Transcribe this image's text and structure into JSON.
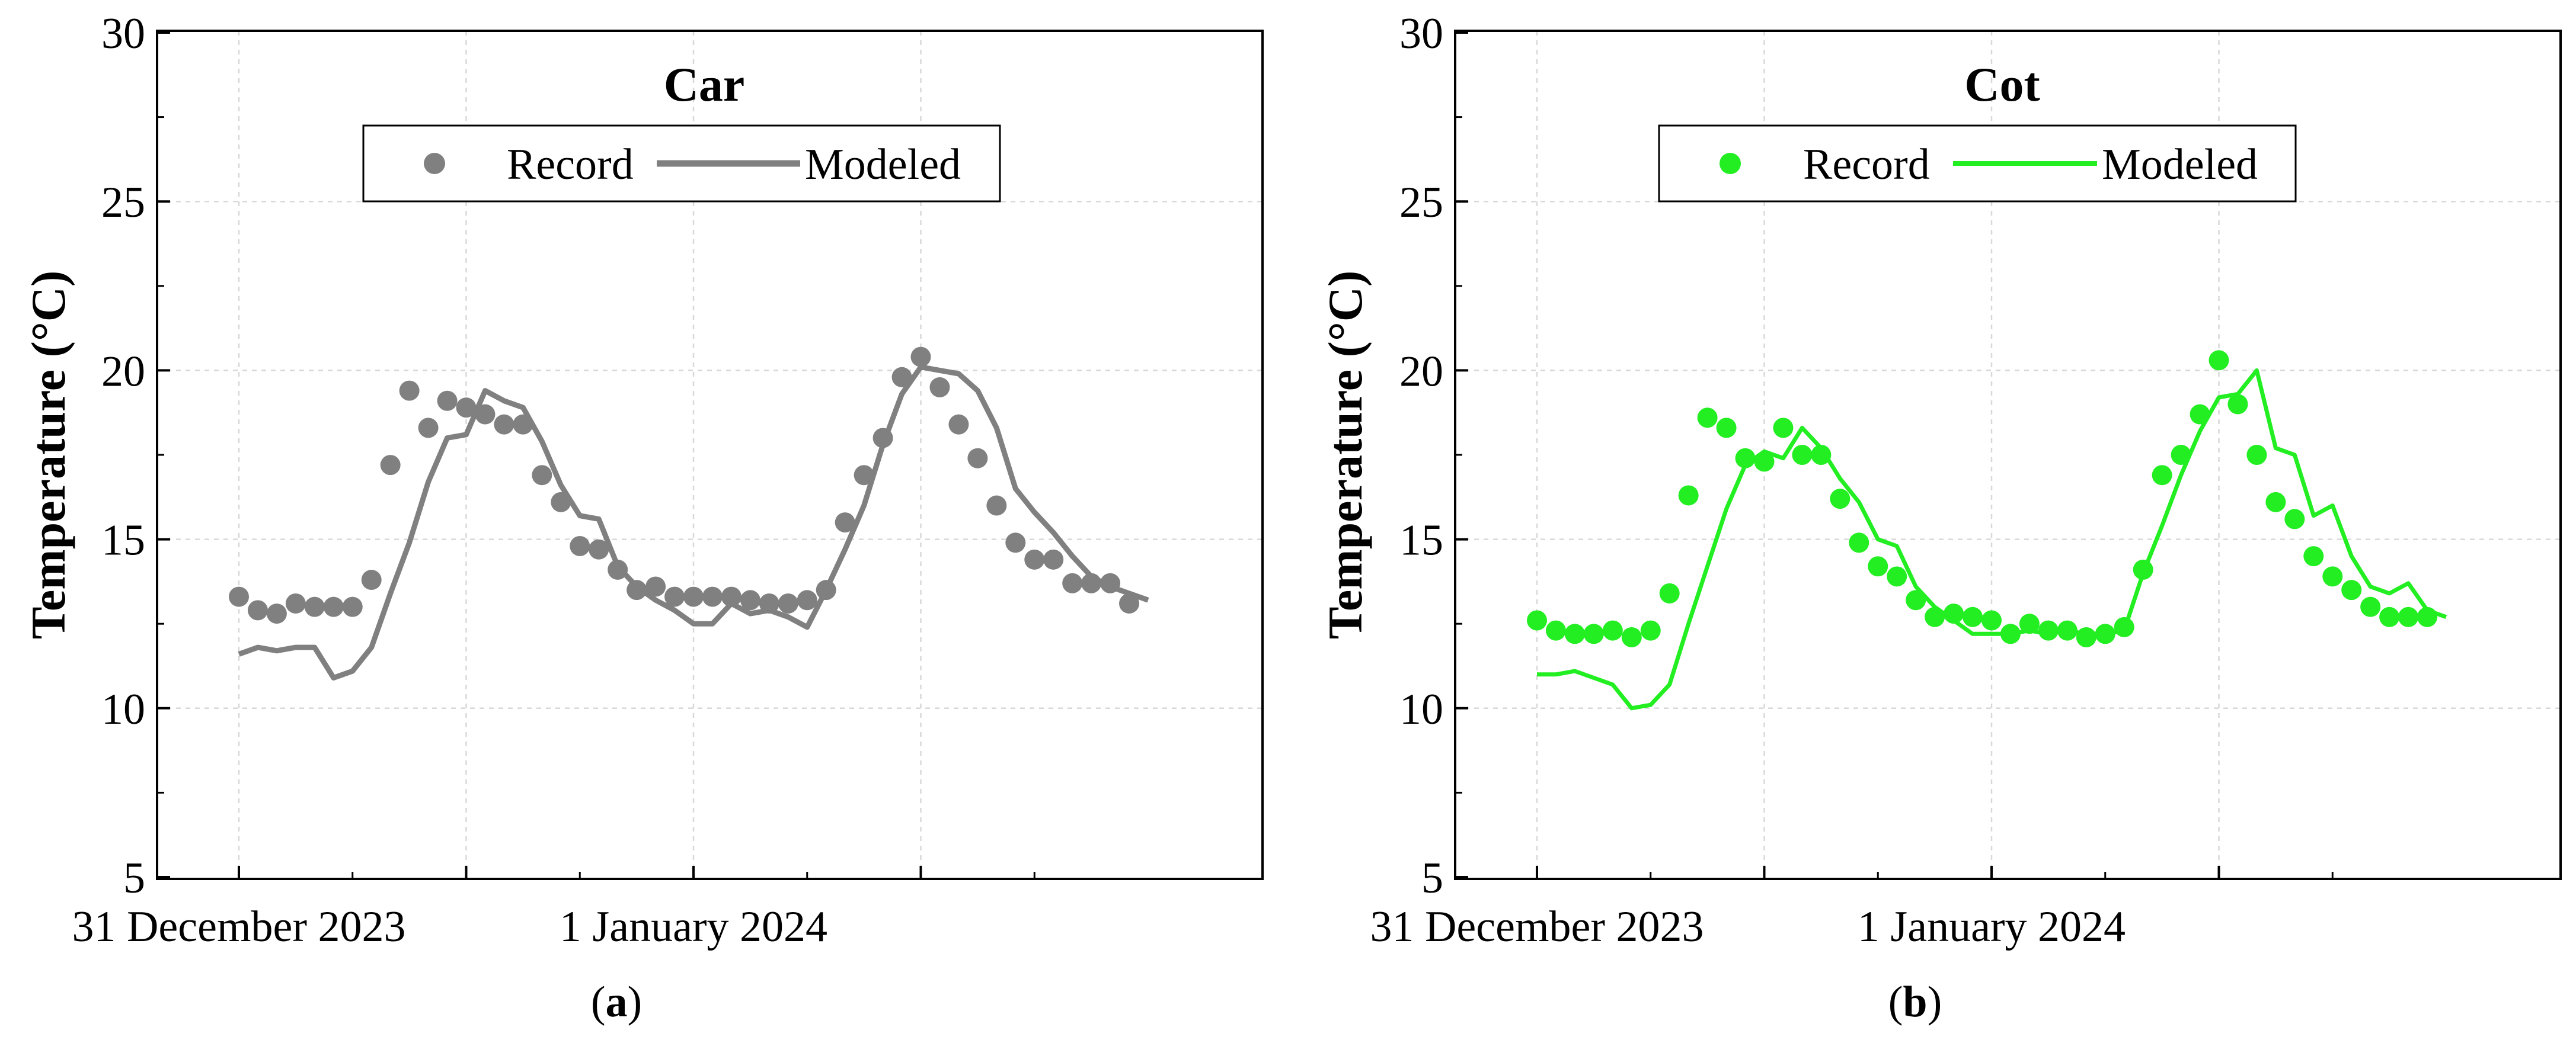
{
  "chart_data": [
    {
      "type": "line",
      "panel_label": "a",
      "caption_open": "(",
      "caption_close": ")",
      "title": "Car",
      "xlabel": "",
      "ylabel": "Temperature (°C)",
      "ylim": [
        5,
        30
      ],
      "yticks": [
        "5",
        "10",
        "15",
        "20",
        "25",
        "30"
      ],
      "xtick_labels": [
        "31 December 2023",
        "1 January 2024"
      ],
      "hours_per_day": 24,
      "x_range_hours": [
        -2,
        50
      ],
      "grid": true,
      "color": "#808080",
      "legend_position": "top-center",
      "series": [
        {
          "name": "Record",
          "style": "markers",
          "values": [
            13.3,
            12.9,
            12.8,
            13.1,
            13.0,
            13.0,
            13.0,
            13.8,
            17.2,
            19.4,
            18.3,
            19.1,
            18.9,
            18.7,
            18.4,
            18.4,
            16.9,
            16.1,
            14.8,
            14.7,
            14.1,
            13.5,
            13.6,
            13.3,
            13.3,
            13.3,
            13.3,
            13.2,
            13.1,
            13.1,
            13.2,
            13.5,
            15.5,
            16.9,
            18.0,
            19.8,
            20.4,
            19.5,
            18.4,
            17.4,
            16.0,
            14.9,
            14.4,
            14.4,
            13.7,
            13.7,
            13.7,
            13.1
          ]
        },
        {
          "name": "Modeled",
          "style": "line",
          "values": [
            11.6,
            11.8,
            11.7,
            11.8,
            11.8,
            10.9,
            11.1,
            11.8,
            13.4,
            14.9,
            16.7,
            18.0,
            18.1,
            19.4,
            19.1,
            18.9,
            17.9,
            16.6,
            15.7,
            15.6,
            14.2,
            13.6,
            13.2,
            12.9,
            12.5,
            12.5,
            13.1,
            12.8,
            12.9,
            12.7,
            12.4,
            13.5,
            14.7,
            16.0,
            17.8,
            19.3,
            20.1,
            20.0,
            19.9,
            19.4,
            18.3,
            16.5,
            15.8,
            15.2,
            14.5,
            13.9,
            13.6,
            13.4,
            13.2
          ]
        }
      ]
    },
    {
      "type": "line",
      "panel_label": "b",
      "caption_open": "(",
      "caption_close": ")",
      "title": "Cot",
      "xlabel": "",
      "ylabel": "Temperature (°C)",
      "ylim": [
        5,
        30
      ],
      "yticks": [
        "5",
        "10",
        "15",
        "20",
        "25",
        "30"
      ],
      "xtick_labels": [
        "31 December 2023",
        "1 January 2024"
      ],
      "hours_per_day": 24,
      "x_range_hours": [
        -2,
        50
      ],
      "grid": true,
      "color": "#22ee22",
      "legend_position": "top-center",
      "series": [
        {
          "name": "Record",
          "style": "markers",
          "values": [
            12.6,
            12.3,
            12.2,
            12.2,
            12.3,
            12.1,
            12.3,
            13.4,
            16.3,
            18.6,
            18.3,
            17.4,
            17.3,
            18.3,
            17.5,
            17.5,
            16.2,
            14.9,
            14.2,
            13.9,
            13.2,
            12.7,
            12.8,
            12.7,
            12.6,
            12.2,
            12.5,
            12.3,
            12.3,
            12.1,
            12.2,
            12.4,
            14.1,
            16.9,
            17.5,
            18.7,
            20.3,
            19.0,
            17.5,
            16.1,
            15.6,
            14.5,
            13.9,
            13.5,
            13.0,
            12.7,
            12.7,
            12.7
          ]
        },
        {
          "name": "Modeled",
          "style": "line",
          "values": [
            11.0,
            11.0,
            11.1,
            10.9,
            10.7,
            10.0,
            10.1,
            10.7,
            12.5,
            14.2,
            15.9,
            17.2,
            17.6,
            17.4,
            18.3,
            17.7,
            16.8,
            16.1,
            15.0,
            14.8,
            13.6,
            13.0,
            12.6,
            12.2,
            12.2,
            12.2,
            12.3,
            12.2,
            12.3,
            12.2,
            12.2,
            12.3,
            14.0,
            15.4,
            16.9,
            18.2,
            19.2,
            19.3,
            20.0,
            17.7,
            17.5,
            15.7,
            16.0,
            14.5,
            13.6,
            13.4,
            13.7,
            12.9,
            12.7
          ]
        }
      ]
    }
  ]
}
